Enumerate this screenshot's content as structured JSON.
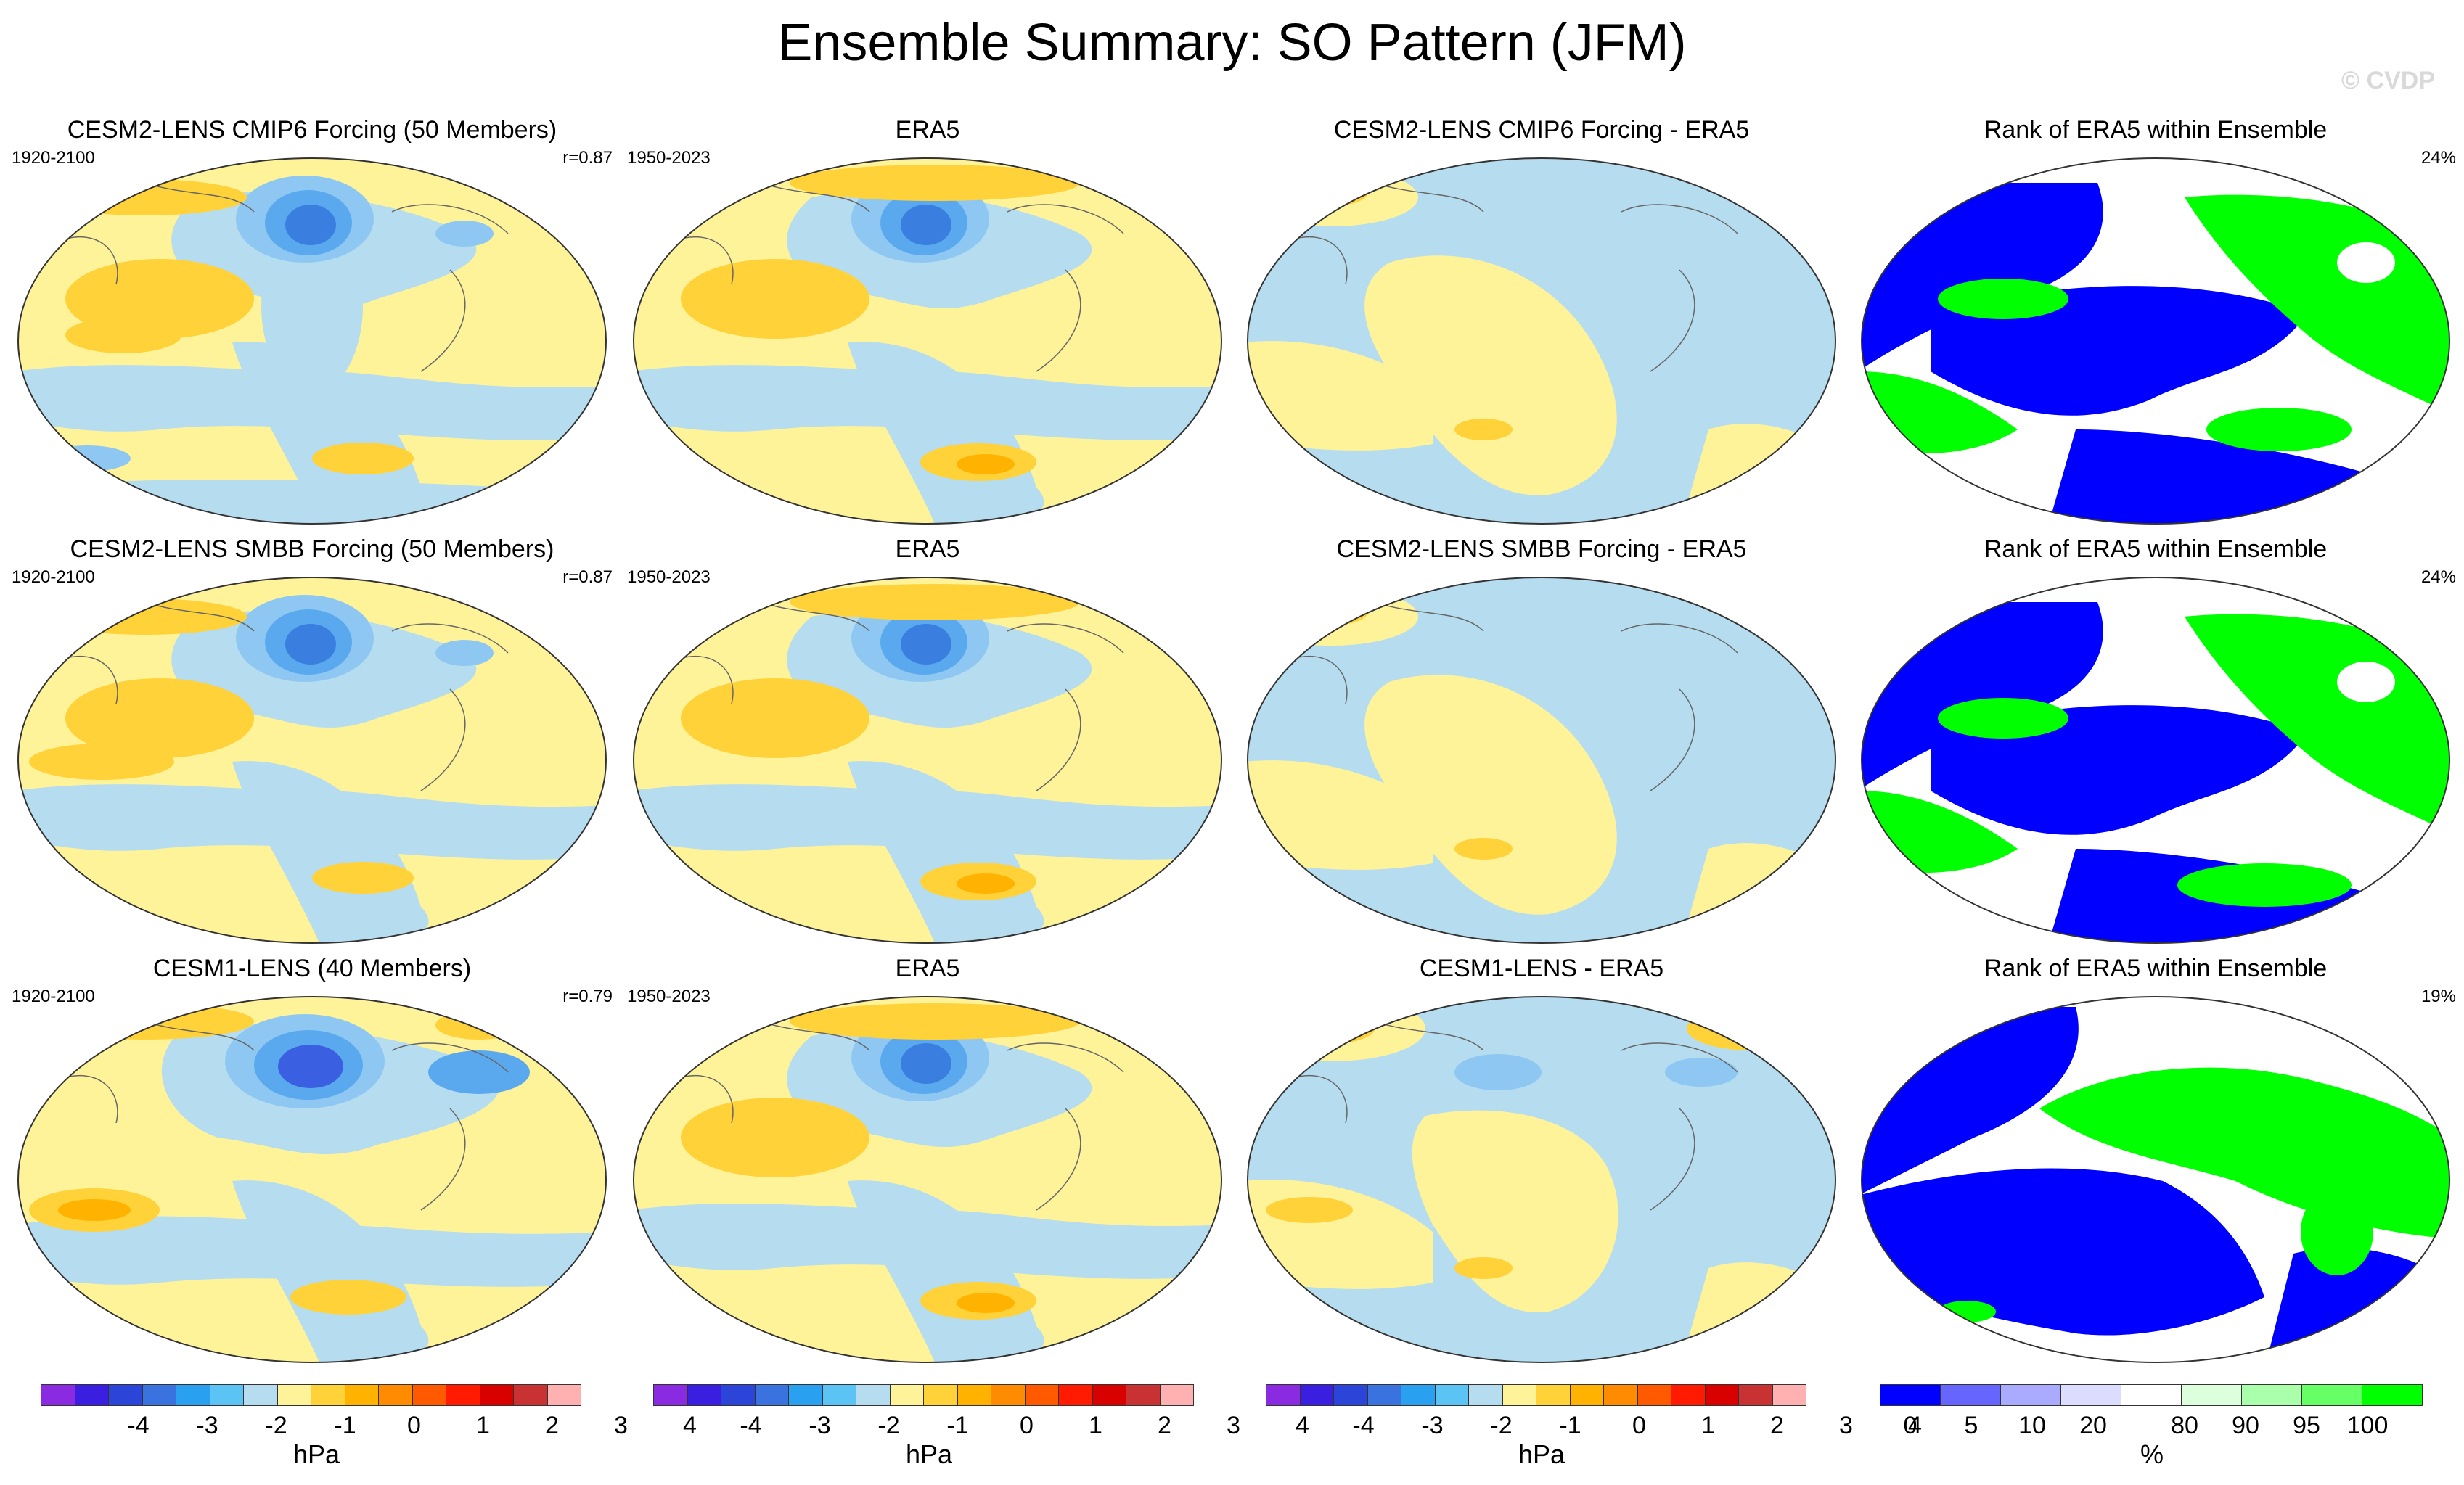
{
  "title": "Ensemble Summary: SO Pattern (JFM)",
  "copyright": "© CVDP",
  "rows": [
    {
      "model": {
        "title": "CESM2-LENS CMIP6 Forcing (50 Members)",
        "years": "1920-2100",
        "stat": "r=0.87"
      },
      "obs": {
        "title": "ERA5",
        "years": "1950-2023"
      },
      "diff": {
        "title": "CESM2-LENS CMIP6 Forcing - ERA5"
      },
      "rank": {
        "title": "Rank of ERA5 within Ensemble",
        "stat": "24%"
      }
    },
    {
      "model": {
        "title": "CESM2-LENS SMBB Forcing (50 Members)",
        "years": "1920-2100",
        "stat": "r=0.87"
      },
      "obs": {
        "title": "ERA5",
        "years": "1950-2023"
      },
      "diff": {
        "title": "CESM2-LENS SMBB Forcing - ERA5"
      },
      "rank": {
        "title": "Rank of ERA5 within Ensemble",
        "stat": "24%"
      }
    },
    {
      "model": {
        "title": "CESM1-LENS (40 Members)",
        "years": "1920-2100",
        "stat": "r=0.79"
      },
      "obs": {
        "title": "ERA5",
        "years": "1950-2023"
      },
      "diff": {
        "title": "CESM1-LENS - ERA5"
      },
      "rank": {
        "title": "Rank of ERA5 within Ensemble",
        "stat": "19%"
      }
    }
  ],
  "colorbars": {
    "hpa": {
      "unit": "hPa",
      "ticks": [
        "-4",
        "-3",
        "-2",
        "-1",
        "0",
        "1",
        "2",
        "3",
        "4"
      ],
      "colors": [
        "#8a2be2",
        "#3a1fe0",
        "#2a45d8",
        "#3a72e0",
        "#2aa0f0",
        "#5cc4f5",
        "#b6dcef",
        "#fff39a",
        "#ffd23a",
        "#ffb300",
        "#ff8c00",
        "#ff5a00",
        "#ff1a00",
        "#d90000",
        "#c83232",
        "#ffb0b0"
      ]
    },
    "pct": {
      "unit": "%",
      "ticks": [
        "0",
        "5",
        "10",
        "20",
        "80",
        "90",
        "95",
        "100"
      ],
      "colors": [
        "#0000ff",
        "#6666ff",
        "#aaaaff",
        "#dcdcff",
        "#ffffff",
        "#dcffdc",
        "#aaffaa",
        "#66ff66",
        "#00ff00"
      ]
    }
  }
}
